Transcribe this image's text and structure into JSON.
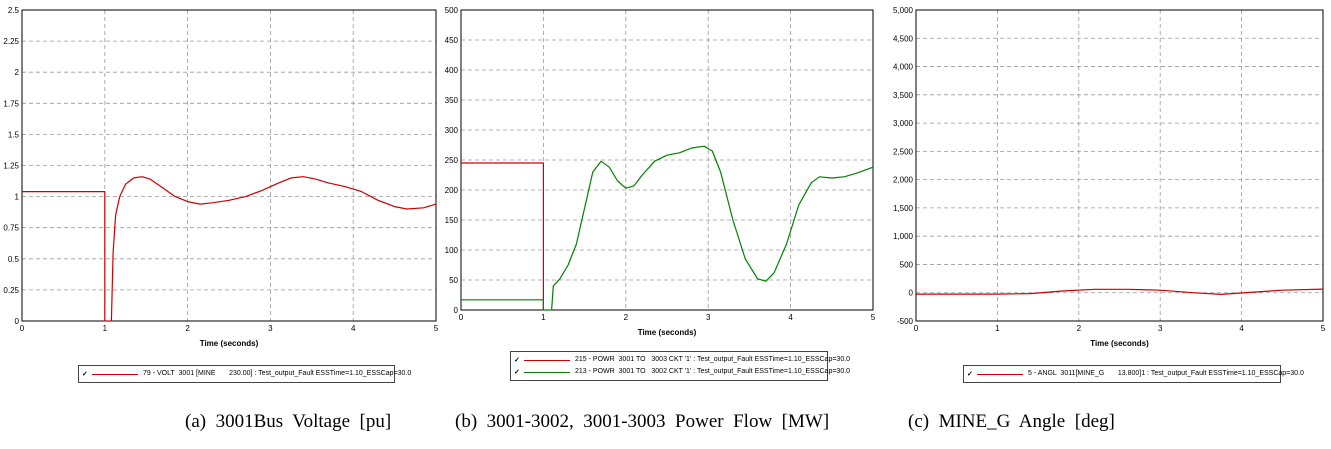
{
  "captions": [
    "(a)  3001Bus  Voltage  [pu]",
    "(b)  3001-3002,  3001-3003  Power  Flow  [MW]",
    "(c)  MINE_G  Angle  [deg]"
  ],
  "chart_data": [
    {
      "type": "line",
      "title": "",
      "xlabel": "Time (seconds)",
      "ylabel": "",
      "xlim": [
        0,
        5
      ],
      "ylim": [
        0,
        2.5
      ],
      "xticks": [
        "0",
        "1",
        "2",
        "3",
        "4",
        "5"
      ],
      "yticks": [
        "0",
        "0.25",
        "0.5",
        "0.75",
        "1",
        "1.25",
        "1.5",
        "1.75",
        "2",
        "2.25",
        "2.5"
      ],
      "grid": true,
      "legend_position": "bottom",
      "series": [
        {
          "name": "79 - VOLT  3001 [MINE       230.00] : Test_output_Fault ESSTime=1.10_ESSCap=30.0",
          "color": "#cc0000",
          "points": [
            [
              0,
              1.04
            ],
            [
              1.0,
              1.04
            ],
            [
              1.0,
              0
            ],
            [
              1.08,
              0
            ],
            [
              1.1,
              0.55
            ],
            [
              1.13,
              0.85
            ],
            [
              1.18,
              1.0
            ],
            [
              1.25,
              1.1
            ],
            [
              1.35,
              1.15
            ],
            [
              1.45,
              1.16
            ],
            [
              1.55,
              1.14
            ],
            [
              1.7,
              1.07
            ],
            [
              1.85,
              1.0
            ],
            [
              2.0,
              0.96
            ],
            [
              2.15,
              0.94
            ],
            [
              2.3,
              0.95
            ],
            [
              2.5,
              0.97
            ],
            [
              2.7,
              1.0
            ],
            [
              2.9,
              1.05
            ],
            [
              3.1,
              1.11
            ],
            [
              3.25,
              1.15
            ],
            [
              3.4,
              1.16
            ],
            [
              3.55,
              1.14
            ],
            [
              3.7,
              1.11
            ],
            [
              3.9,
              1.08
            ],
            [
              4.1,
              1.04
            ],
            [
              4.3,
              0.97
            ],
            [
              4.5,
              0.92
            ],
            [
              4.65,
              0.9
            ],
            [
              4.85,
              0.91
            ],
            [
              5.0,
              0.94
            ]
          ]
        }
      ]
    },
    {
      "type": "line",
      "title": "",
      "xlabel": "Time (seconds)",
      "ylabel": "",
      "xlim": [
        0,
        5
      ],
      "ylim": [
        0,
        500
      ],
      "xticks": [
        "0",
        "1",
        "2",
        "3",
        "4",
        "5"
      ],
      "yticks": [
        "0",
        "50",
        "100",
        "150",
        "200",
        "250",
        "300",
        "350",
        "400",
        "450",
        "500"
      ],
      "grid": true,
      "legend_position": "bottom",
      "series": [
        {
          "name": "215 - POWR  3001 TO   3003 CKT '1' : Test_output_Fault ESSTime=1.10_ESSCap=30.0",
          "color": "#cc0000",
          "points": [
            [
              0,
              245
            ],
            [
              1.0,
              245
            ],
            [
              1.0,
              0
            ]
          ]
        },
        {
          "name": "213 - POWR  3001 TO   3002 CKT '1' : Test_output_Fault ESSTime=1.10_ESSCap=30.0",
          "color": "#008000",
          "points": [
            [
              0,
              17
            ],
            [
              1.0,
              17
            ],
            [
              1.0,
              0
            ],
            [
              1.1,
              0
            ],
            [
              1.12,
              40
            ],
            [
              1.2,
              52
            ],
            [
              1.3,
              75
            ],
            [
              1.4,
              110
            ],
            [
              1.5,
              170
            ],
            [
              1.6,
              230
            ],
            [
              1.7,
              248
            ],
            [
              1.8,
              238
            ],
            [
              1.9,
              215
            ],
            [
              2.0,
              203
            ],
            [
              2.1,
              207
            ],
            [
              2.2,
              225
            ],
            [
              2.35,
              248
            ],
            [
              2.5,
              258
            ],
            [
              2.65,
              262
            ],
            [
              2.8,
              270
            ],
            [
              2.95,
              273
            ],
            [
              3.05,
              265
            ],
            [
              3.15,
              230
            ],
            [
              3.3,
              150
            ],
            [
              3.45,
              85
            ],
            [
              3.6,
              52
            ],
            [
              3.7,
              48
            ],
            [
              3.8,
              62
            ],
            [
              3.95,
              110
            ],
            [
              4.1,
              175
            ],
            [
              4.25,
              212
            ],
            [
              4.35,
              222
            ],
            [
              4.5,
              220
            ],
            [
              4.65,
              222
            ],
            [
              4.8,
              228
            ],
            [
              5.0,
              238
            ]
          ]
        }
      ]
    },
    {
      "type": "line",
      "title": "",
      "xlabel": "Time (seconds)",
      "ylabel": "",
      "xlim": [
        0,
        5
      ],
      "ylim": [
        -500,
        5000
      ],
      "xticks": [
        "0",
        "1",
        "2",
        "3",
        "4",
        "5"
      ],
      "yticks": [
        "-500",
        "0",
        "500",
        "1,000",
        "1,500",
        "2,000",
        "2,500",
        "3,000",
        "3,500",
        "4,000",
        "4,500",
        "5,000"
      ],
      "grid": true,
      "legend_position": "bottom",
      "series": [
        {
          "name": "5 - ANGL  3011[MINE_G       13.800]1 : Test_output_Fault ESSTime=1.10_ESSCap=30.0",
          "color": "#cc0000",
          "points": [
            [
              0,
              -25
            ],
            [
              1.0,
              -25
            ],
            [
              1.4,
              -15
            ],
            [
              1.8,
              30
            ],
            [
              2.2,
              60
            ],
            [
              2.6,
              60
            ],
            [
              3.0,
              45
            ],
            [
              3.4,
              0
            ],
            [
              3.75,
              -30
            ],
            [
              4.1,
              5
            ],
            [
              4.5,
              45
            ],
            [
              5.0,
              65
            ]
          ]
        }
      ]
    }
  ]
}
